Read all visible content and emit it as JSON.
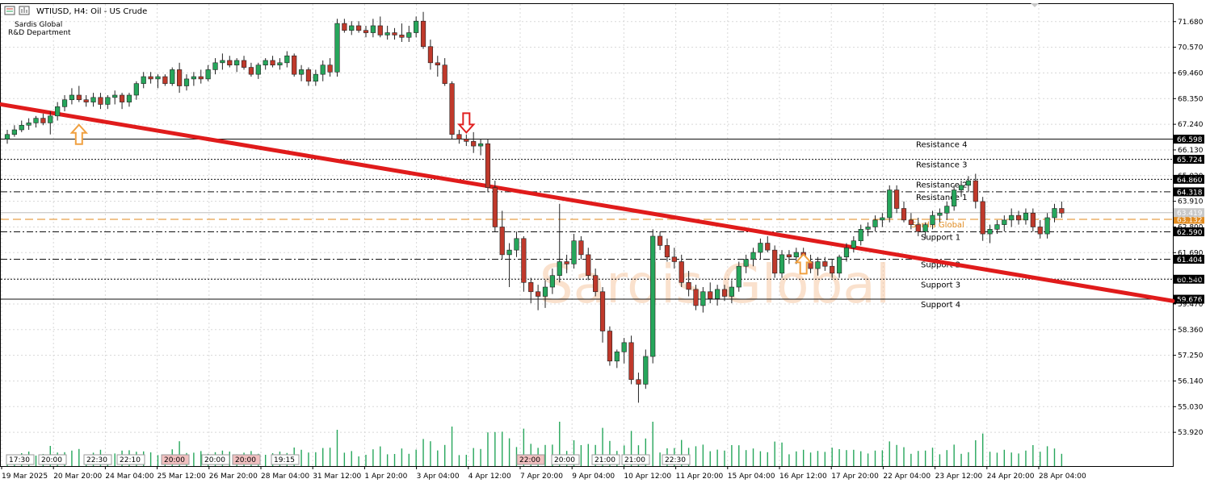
{
  "header": {
    "title": "WTIUSD, H4:  Oil - US Crude",
    "company": "Sardis Global",
    "department": "R&D Department"
  },
  "watermark": "Sardis Global",
  "colors": {
    "bull": "#26a65b",
    "bear": "#c0392b",
    "trendline": "#e01b1b",
    "grid": "#d8d8d8",
    "pivot": "#e08a1e",
    "arrow_up": "#f0a040",
    "arrow_down": "#e02020",
    "volume": "#26a65b"
  },
  "chart_data": {
    "type": "candlestick",
    "symbol": "WTIUSD",
    "timeframe": "H4",
    "ylim": [
      52.6,
      72.3
    ],
    "y_ticks": [
      "71.680",
      "70.570",
      "69.460",
      "68.350",
      "67.240",
      "66.130",
      "65.020",
      "63.910",
      "62.800",
      "61.690",
      "60.580",
      "59.470",
      "58.360",
      "57.250",
      "56.140",
      "55.030",
      "53.920"
    ],
    "x_ticks": [
      "19 Mar 2025",
      "20 Mar 20:00",
      "24 Mar 04:00",
      "25 Mar 12:00",
      "26 Mar 20:00",
      "28 Mar 04:00",
      "31 Mar 12:00",
      "1 Apr 20:00",
      "3 Apr 04:00",
      "4 Apr 12:00",
      "7 Apr 20:00",
      "9 Apr 04:00",
      "10 Apr 12:00",
      "11 Apr 20:00",
      "15 Apr 04:00",
      "16 Apr 12:00",
      "17 Apr 20:00",
      "22 Apr 04:00",
      "23 Apr 12:00",
      "24 Apr 20:00",
      "28 Apr 04:00"
    ],
    "session_labels": [
      {
        "text": "17:30",
        "highlight": false
      },
      {
        "text": "20:00",
        "highlight": false
      },
      {
        "text": "22:30",
        "highlight": false
      },
      {
        "text": "22:10",
        "highlight": false
      },
      {
        "text": "20:00",
        "highlight": true
      },
      {
        "text": "20:00",
        "highlight": false
      },
      {
        "text": "20:00",
        "highlight": true
      },
      {
        "text": "19:15",
        "highlight": false
      },
      {
        "text": "22:00",
        "highlight": true
      },
      {
        "text": "20:00",
        "highlight": false
      },
      {
        "text": "21:00",
        "highlight": false
      },
      {
        "text": "21:00",
        "highlight": false
      },
      {
        "text": "22:30",
        "highlight": false
      }
    ],
    "levels": [
      {
        "name": "Resistance 4",
        "value": 66.598,
        "label": "66.598",
        "style": "solid"
      },
      {
        "name": "Resistance 3",
        "value": 65.724,
        "label": "65.724",
        "style": "dotted"
      },
      {
        "name": "Resistance 2",
        "value": 64.86,
        "label": "64.860",
        "style": "dotted"
      },
      {
        "name": "Resistance 1",
        "value": 64.318,
        "label": "64.318",
        "style": "dashdot"
      },
      {
        "name": "Sardis Global",
        "value": 63.132,
        "label": "63.132",
        "style": "pivot"
      },
      {
        "name": "Support 1",
        "value": 62.59,
        "label": "62.590",
        "style": "dashdot"
      },
      {
        "name": "Support 2",
        "value": 61.404,
        "label": "61.404",
        "style": "dashdot"
      },
      {
        "name": "Support 3",
        "value": 60.54,
        "label": "60.540",
        "style": "dotted"
      },
      {
        "name": "Support 4",
        "value": 59.676,
        "label": "59.676",
        "style": "solid"
      }
    ],
    "current_price": {
      "value": 63.419,
      "label": "63.419"
    },
    "trendline": {
      "from": [
        0,
        68.1
      ],
      "to": [
        143,
        59.6
      ]
    },
    "arrows": [
      {
        "dir": "up",
        "index": 10,
        "value": 66.8
      },
      {
        "dir": "down",
        "index": 64,
        "value": 67.3
      },
      {
        "dir": "up",
        "index": 111,
        "value": 61.2
      }
    ],
    "candles": [
      [
        66.6,
        67.0,
        66.4,
        66.8
      ],
      [
        66.8,
        67.2,
        66.7,
        67.0
      ],
      [
        67.0,
        67.4,
        66.9,
        67.2
      ],
      [
        67.2,
        67.5,
        67.0,
        67.3
      ],
      [
        67.3,
        67.6,
        67.1,
        67.5
      ],
      [
        67.5,
        67.7,
        67.2,
        67.3
      ],
      [
        67.3,
        67.8,
        66.8,
        67.6
      ],
      [
        67.6,
        68.2,
        67.4,
        68.0
      ],
      [
        68.0,
        68.5,
        67.8,
        68.3
      ],
      [
        68.3,
        68.8,
        68.1,
        68.5
      ],
      [
        68.5,
        68.9,
        68.2,
        68.3
      ],
      [
        68.3,
        68.5,
        68.0,
        68.2
      ],
      [
        68.2,
        68.6,
        68.0,
        68.4
      ],
      [
        68.4,
        68.6,
        67.9,
        68.1
      ],
      [
        68.1,
        68.5,
        67.9,
        68.4
      ],
      [
        68.4,
        68.7,
        68.1,
        68.5
      ],
      [
        68.5,
        68.6,
        67.9,
        68.2
      ],
      [
        68.2,
        68.6,
        68.0,
        68.5
      ],
      [
        68.5,
        69.1,
        68.3,
        69.0
      ],
      [
        69.0,
        69.5,
        68.8,
        69.3
      ],
      [
        69.3,
        69.5,
        69.0,
        69.2
      ],
      [
        69.2,
        69.4,
        68.8,
        69.3
      ],
      [
        69.3,
        69.4,
        68.9,
        69.0
      ],
      [
        69.0,
        69.7,
        68.9,
        69.6
      ],
      [
        69.6,
        69.9,
        68.6,
        68.9
      ],
      [
        68.9,
        69.4,
        68.7,
        69.2
      ],
      [
        69.2,
        69.5,
        68.9,
        69.3
      ],
      [
        69.3,
        69.6,
        69.0,
        69.2
      ],
      [
        69.2,
        69.8,
        69.1,
        69.6
      ],
      [
        69.6,
        70.1,
        69.4,
        69.9
      ],
      [
        69.9,
        70.3,
        69.6,
        70.0
      ],
      [
        70.0,
        70.2,
        69.7,
        69.8
      ],
      [
        69.8,
        70.1,
        69.5,
        70.0
      ],
      [
        70.0,
        70.2,
        69.6,
        69.7
      ],
      [
        69.7,
        69.9,
        69.3,
        69.4
      ],
      [
        69.4,
        69.9,
        69.2,
        69.8
      ],
      [
        69.8,
        70.1,
        69.6,
        70.0
      ],
      [
        70.0,
        70.2,
        69.7,
        69.8
      ],
      [
        69.8,
        70.1,
        69.6,
        69.9
      ],
      [
        69.9,
        70.4,
        69.7,
        70.2
      ],
      [
        70.2,
        70.3,
        69.3,
        69.4
      ],
      [
        69.4,
        69.8,
        69.1,
        69.6
      ],
      [
        69.6,
        69.7,
        68.9,
        69.1
      ],
      [
        69.1,
        69.6,
        68.9,
        69.4
      ],
      [
        69.4,
        70.0,
        69.1,
        69.8
      ],
      [
        69.8,
        70.1,
        69.3,
        69.5
      ],
      [
        69.5,
        71.8,
        69.3,
        71.6
      ],
      [
        71.6,
        71.8,
        71.2,
        71.3
      ],
      [
        71.3,
        71.7,
        71.1,
        71.5
      ],
      [
        71.5,
        71.7,
        71.2,
        71.3
      ],
      [
        71.3,
        71.5,
        71.0,
        71.2
      ],
      [
        71.2,
        71.8,
        71.0,
        71.5
      ],
      [
        71.5,
        71.9,
        71.0,
        71.1
      ],
      [
        71.1,
        71.5,
        70.9,
        71.2
      ],
      [
        71.2,
        71.4,
        70.9,
        71.1
      ],
      [
        71.1,
        71.6,
        70.8,
        71.0
      ],
      [
        71.0,
        71.5,
        70.8,
        71.2
      ],
      [
        71.2,
        71.9,
        71.0,
        71.7
      ],
      [
        71.7,
        72.1,
        70.5,
        70.6
      ],
      [
        70.6,
        70.9,
        69.6,
        69.9
      ],
      [
        69.9,
        70.2,
        69.3,
        69.8
      ],
      [
        69.8,
        70.1,
        68.9,
        69.0
      ],
      [
        69.0,
        69.1,
        66.6,
        66.8
      ],
      [
        66.8,
        67.0,
        66.4,
        66.6
      ],
      [
        66.6,
        66.8,
        66.3,
        66.5
      ],
      [
        66.5,
        66.9,
        66.0,
        66.3
      ],
      [
        66.3,
        66.6,
        65.9,
        66.4
      ],
      [
        66.4,
        66.6,
        64.3,
        64.5
      ],
      [
        64.5,
        64.8,
        62.6,
        62.8
      ],
      [
        62.8,
        63.5,
        61.4,
        61.6
      ],
      [
        61.6,
        62.1,
        60.2,
        61.8
      ],
      [
        61.8,
        62.6,
        61.5,
        62.3
      ],
      [
        62.3,
        62.4,
        60.0,
        60.4
      ],
      [
        60.4,
        60.6,
        59.5,
        60.0
      ],
      [
        60.0,
        60.3,
        59.2,
        59.8
      ],
      [
        59.8,
        60.5,
        59.3,
        60.2
      ],
      [
        60.2,
        61.0,
        59.9,
        60.7
      ],
      [
        60.7,
        63.8,
        60.4,
        61.3
      ],
      [
        61.3,
        61.6,
        60.8,
        61.2
      ],
      [
        61.2,
        62.5,
        61.0,
        62.2
      ],
      [
        62.2,
        62.4,
        61.4,
        61.6
      ],
      [
        61.6,
        61.9,
        60.5,
        60.7
      ],
      [
        60.7,
        61.0,
        59.8,
        60.0
      ],
      [
        60.0,
        60.2,
        57.8,
        58.3
      ],
      [
        58.3,
        58.5,
        56.8,
        57.0
      ],
      [
        57.0,
        57.5,
        56.7,
        57.4
      ],
      [
        57.4,
        58.0,
        56.9,
        57.8
      ],
      [
        57.8,
        58.1,
        56.0,
        56.2
      ],
      [
        56.2,
        56.5,
        55.2,
        56.0
      ],
      [
        56.0,
        57.5,
        55.8,
        57.2
      ],
      [
        57.2,
        62.7,
        56.9,
        62.4
      ],
      [
        62.4,
        62.6,
        61.8,
        62.0
      ],
      [
        62.0,
        62.3,
        61.3,
        61.5
      ],
      [
        61.5,
        61.9,
        61.0,
        61.3
      ],
      [
        61.3,
        61.6,
        60.2,
        60.4
      ],
      [
        60.4,
        60.9,
        59.8,
        60.1
      ],
      [
        60.1,
        60.3,
        59.2,
        59.4
      ],
      [
        59.4,
        60.2,
        59.1,
        60.0
      ],
      [
        60.0,
        60.4,
        59.5,
        59.7
      ],
      [
        59.7,
        60.3,
        59.4,
        60.1
      ],
      [
        60.1,
        60.3,
        59.6,
        59.8
      ],
      [
        59.8,
        60.5,
        59.5,
        60.2
      ],
      [
        60.2,
        61.3,
        60.0,
        61.1
      ],
      [
        61.1,
        61.6,
        60.8,
        61.4
      ],
      [
        61.4,
        61.9,
        61.1,
        61.7
      ],
      [
        61.7,
        62.3,
        61.4,
        62.1
      ],
      [
        62.1,
        62.4,
        61.7,
        61.8
      ],
      [
        61.8,
        62.0,
        60.6,
        60.8
      ],
      [
        60.8,
        61.8,
        60.6,
        61.6
      ],
      [
        61.6,
        61.8,
        61.2,
        61.5
      ],
      [
        61.5,
        61.9,
        61.2,
        61.7
      ],
      [
        61.7,
        61.9,
        61.2,
        61.3
      ],
      [
        61.3,
        61.6,
        60.8,
        61.0
      ],
      [
        61.0,
        61.5,
        60.7,
        61.3
      ],
      [
        61.3,
        61.5,
        60.9,
        61.1
      ],
      [
        61.1,
        61.4,
        60.6,
        60.8
      ],
      [
        60.8,
        61.6,
        60.6,
        61.5
      ],
      [
        61.5,
        62.1,
        61.3,
        61.9
      ],
      [
        61.9,
        62.4,
        61.7,
        62.2
      ],
      [
        62.2,
        62.9,
        62.0,
        62.7
      ],
      [
        62.7,
        63.0,
        62.4,
        62.8
      ],
      [
        62.8,
        63.3,
        62.6,
        63.1
      ],
      [
        63.1,
        63.4,
        62.8,
        63.2
      ],
      [
        63.2,
        64.6,
        63.0,
        64.4
      ],
      [
        64.4,
        64.6,
        63.4,
        63.6
      ],
      [
        63.6,
        63.9,
        63.0,
        63.1
      ],
      [
        63.1,
        63.4,
        62.7,
        62.9
      ],
      [
        62.9,
        63.2,
        62.4,
        62.6
      ],
      [
        62.6,
        63.0,
        62.3,
        62.9
      ],
      [
        62.9,
        63.5,
        62.7,
        63.3
      ],
      [
        63.3,
        63.6,
        63.0,
        63.4
      ],
      [
        63.4,
        63.9,
        63.1,
        63.7
      ],
      [
        63.7,
        64.6,
        63.5,
        64.4
      ],
      [
        64.4,
        64.8,
        64.1,
        64.6
      ],
      [
        64.6,
        65.0,
        64.3,
        64.8
      ],
      [
        64.8,
        65.1,
        63.6,
        63.9
      ],
      [
        63.9,
        64.1,
        62.2,
        62.5
      ],
      [
        62.5,
        62.9,
        62.1,
        62.7
      ],
      [
        62.7,
        63.1,
        62.5,
        62.9
      ],
      [
        62.9,
        63.3,
        62.6,
        63.1
      ],
      [
        63.1,
        63.6,
        62.8,
        63.3
      ],
      [
        63.3,
        63.5,
        62.9,
        63.1
      ],
      [
        63.1,
        63.6,
        62.9,
        63.4
      ],
      [
        63.4,
        63.6,
        62.6,
        62.8
      ],
      [
        62.8,
        63.1,
        62.3,
        62.5
      ],
      [
        62.5,
        63.4,
        62.3,
        63.2
      ],
      [
        63.2,
        63.8,
        63.0,
        63.6
      ],
      [
        63.6,
        63.9,
        63.2,
        63.4
      ]
    ]
  }
}
